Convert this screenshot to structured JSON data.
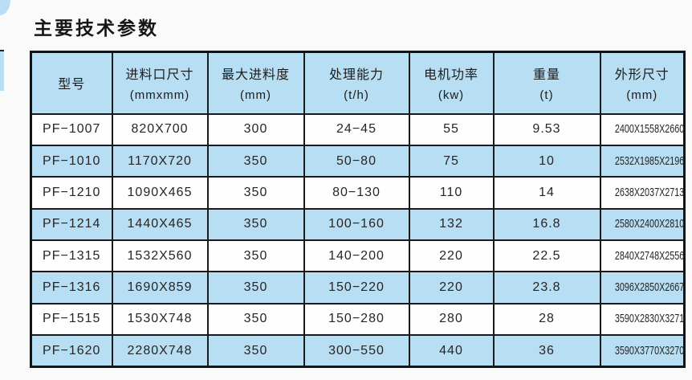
{
  "page": {
    "title": "主要技术参数",
    "background": "#fafafa"
  },
  "colors": {
    "header_bg": "#b7def2",
    "row_alt_bg": "#b7def2",
    "row_bg": "#fefefe",
    "border": "#1a1a1a",
    "title_text": "#161616"
  },
  "table": {
    "columns": [
      {
        "name": "型号",
        "unit": ""
      },
      {
        "name": "进料口尺寸",
        "unit": "(mmxmm)"
      },
      {
        "name": "最大进料度",
        "unit": "(mm)"
      },
      {
        "name": "处理能力",
        "unit": "(t/h)"
      },
      {
        "name": "电机功率",
        "unit": "(kw)"
      },
      {
        "name": "重量",
        "unit": "(t)"
      },
      {
        "name": "外形尺寸",
        "unit": "(mm)"
      }
    ],
    "rows": [
      [
        "PF−1007",
        "820X700",
        "300",
        "24−45",
        "55",
        "9.53",
        "2400X1558X2660"
      ],
      [
        "PF−1010",
        "1170X720",
        "350",
        "50−80",
        "75",
        "10",
        "2532X1985X2196"
      ],
      [
        "PF−1210",
        "1090X465",
        "350",
        "80−130",
        "110",
        "14",
        "2638X2037X2713"
      ],
      [
        "PF−1214",
        "1440X465",
        "350",
        "100−160",
        "132",
        "16.8",
        "2580X2400X2810"
      ],
      [
        "PF−1315",
        "1532X560",
        "350",
        "140−200",
        "220",
        "22.5",
        "2840X2748X2556"
      ],
      [
        "PF−1316",
        "1690X859",
        "350",
        "150−220",
        "220",
        "23.8",
        "3096X2850X2667"
      ],
      [
        "PF−1515",
        "1530X748",
        "350",
        "150−280",
        "280",
        "28",
        "3590X2830X3271"
      ],
      [
        "PF−1620",
        "2280X748",
        "350",
        "300−550",
        "440",
        "36",
        "3590X3770X3270"
      ]
    ]
  }
}
